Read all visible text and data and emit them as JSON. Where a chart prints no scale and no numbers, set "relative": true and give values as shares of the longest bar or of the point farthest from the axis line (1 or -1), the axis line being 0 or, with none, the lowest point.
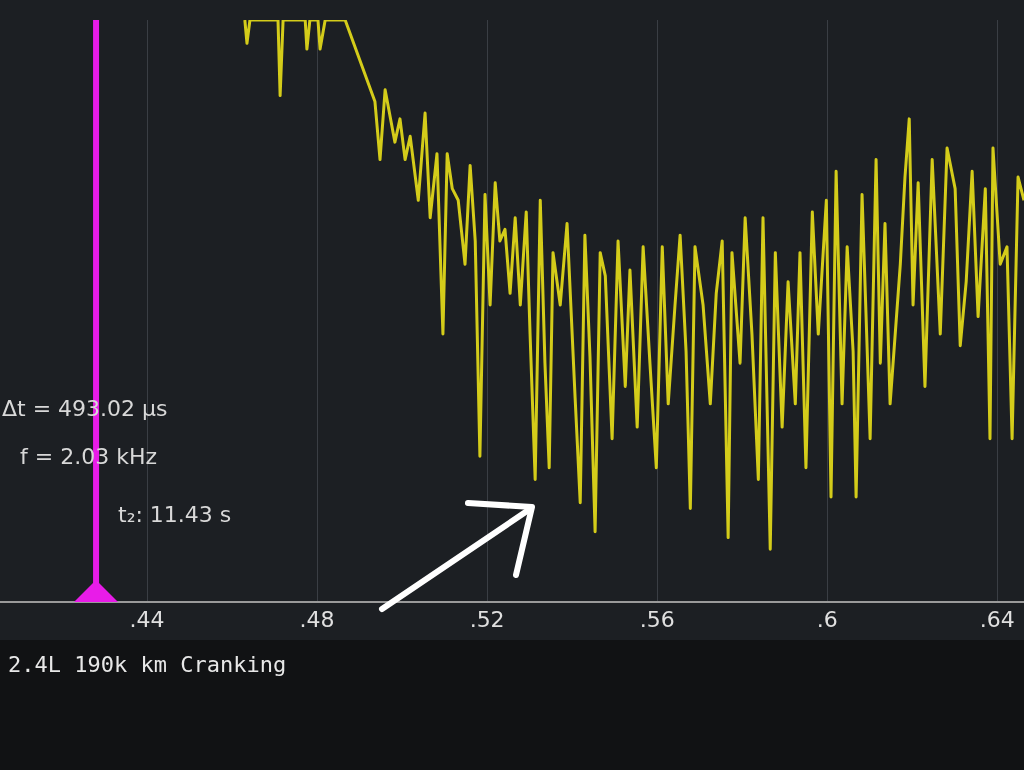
{
  "chart_data": {
    "type": "line",
    "title": "2.4L 190k km Cranking",
    "relative": true,
    "legend": false,
    "grid": "x",
    "marker": "none",
    "line_style": "solid",
    "xlim": [
      0.4054,
      0.6463
    ],
    "xticks": [
      {
        "value": 0.44,
        "label": ".44"
      },
      {
        "value": 0.48,
        "label": ".48"
      },
      {
        "value": 0.52,
        "label": ".52"
      },
      {
        "value": 0.56,
        "label": ".56"
      },
      {
        "value": 0.6,
        "label": ".6"
      },
      {
        "value": 0.64,
        "label": ".64"
      }
    ],
    "ref_lines": [
      {
        "axis": "x",
        "value": 0.428,
        "color": "#e81ce8"
      }
    ],
    "annotations": [
      "Δt = 493.02 µs",
      "f = 2.03 kHz",
      "t₂: 11.43 s"
    ],
    "series": [
      {
        "color": "#d4cc1a",
        "x": [
          0.463,
          0.4635,
          0.4642,
          0.4708,
          0.4713,
          0.472,
          0.4772,
          0.4776,
          0.4783,
          0.4802,
          0.4807,
          0.4819,
          0.4866,
          0.4901,
          0.4936,
          0.4948,
          0.496,
          0.4983,
          0.4995,
          0.5007,
          0.5019,
          0.5038,
          0.5054,
          0.5066,
          0.5082,
          0.5096,
          0.5106,
          0.5118,
          0.5132,
          0.5148,
          0.516,
          0.5172,
          0.5183,
          0.5195,
          0.5207,
          0.5219,
          0.523,
          0.5242,
          0.5254,
          0.5266,
          0.5278,
          0.5292,
          0.5301,
          0.5313,
          0.5325,
          0.5336,
          0.5346,
          0.5355,
          0.5372,
          0.5388,
          0.5407,
          0.5419,
          0.543,
          0.5442,
          0.5454,
          0.5466,
          0.5478,
          0.5494,
          0.5508,
          0.5525,
          0.5536,
          0.5553,
          0.5567,
          0.5583,
          0.5598,
          0.5612,
          0.5626,
          0.5642,
          0.5654,
          0.5668,
          0.5678,
          0.5689,
          0.5708,
          0.5725,
          0.5739,
          0.5753,
          0.5767,
          0.5776,
          0.5795,
          0.5807,
          0.5823,
          0.5838,
          0.5849,
          0.5866,
          0.5878,
          0.5894,
          0.5908,
          0.5925,
          0.5936,
          0.595,
          0.5965,
          0.5979,
          0.5998,
          0.6009,
          0.6021,
          0.6035,
          0.6047,
          0.6061,
          0.6068,
          0.6082,
          0.6101,
          0.6115,
          0.6125,
          0.6136,
          0.6148,
          0.6172,
          0.6183,
          0.6193,
          0.6202,
          0.6214,
          0.623,
          0.6247,
          0.6266,
          0.6282,
          0.6301,
          0.6313,
          0.6327,
          0.6341,
          0.6355,
          0.6372,
          0.6383,
          0.639,
          0.6407,
          0.6423,
          0.6435,
          0.6449,
          0.6463
        ],
        "values": [
          1,
          0.96,
          1,
          1,
          0.87,
          1,
          1,
          0.95,
          1,
          1,
          0.95,
          1,
          1,
          0.93,
          0.86,
          0.76,
          0.88,
          0.79,
          0.83,
          0.76,
          0.8,
          0.69,
          0.84,
          0.66,
          0.77,
          0.46,
          0.77,
          0.71,
          0.69,
          0.58,
          0.75,
          0.62,
          0.25,
          0.7,
          0.51,
          0.72,
          0.62,
          0.64,
          0.53,
          0.66,
          0.51,
          0.67,
          0.46,
          0.21,
          0.69,
          0.41,
          0.23,
          0.6,
          0.51,
          0.65,
          0.35,
          0.17,
          0.63,
          0.42,
          0.12,
          0.6,
          0.56,
          0.28,
          0.62,
          0.37,
          0.57,
          0.3,
          0.61,
          0.41,
          0.23,
          0.61,
          0.34,
          0.51,
          0.63,
          0.43,
          0.16,
          0.61,
          0.51,
          0.34,
          0.53,
          0.62,
          0.11,
          0.6,
          0.41,
          0.66,
          0.46,
          0.21,
          0.66,
          0.09,
          0.6,
          0.3,
          0.55,
          0.34,
          0.6,
          0.23,
          0.67,
          0.46,
          0.69,
          0.18,
          0.74,
          0.34,
          0.61,
          0.43,
          0.18,
          0.7,
          0.28,
          0.76,
          0.41,
          0.65,
          0.34,
          0.58,
          0.73,
          0.83,
          0.51,
          0.72,
          0.37,
          0.76,
          0.46,
          0.78,
          0.71,
          0.44,
          0.55,
          0.74,
          0.49,
          0.71,
          0.28,
          0.78,
          0.58,
          0.61,
          0.28,
          0.73,
          0.69
        ]
      }
    ]
  }
}
